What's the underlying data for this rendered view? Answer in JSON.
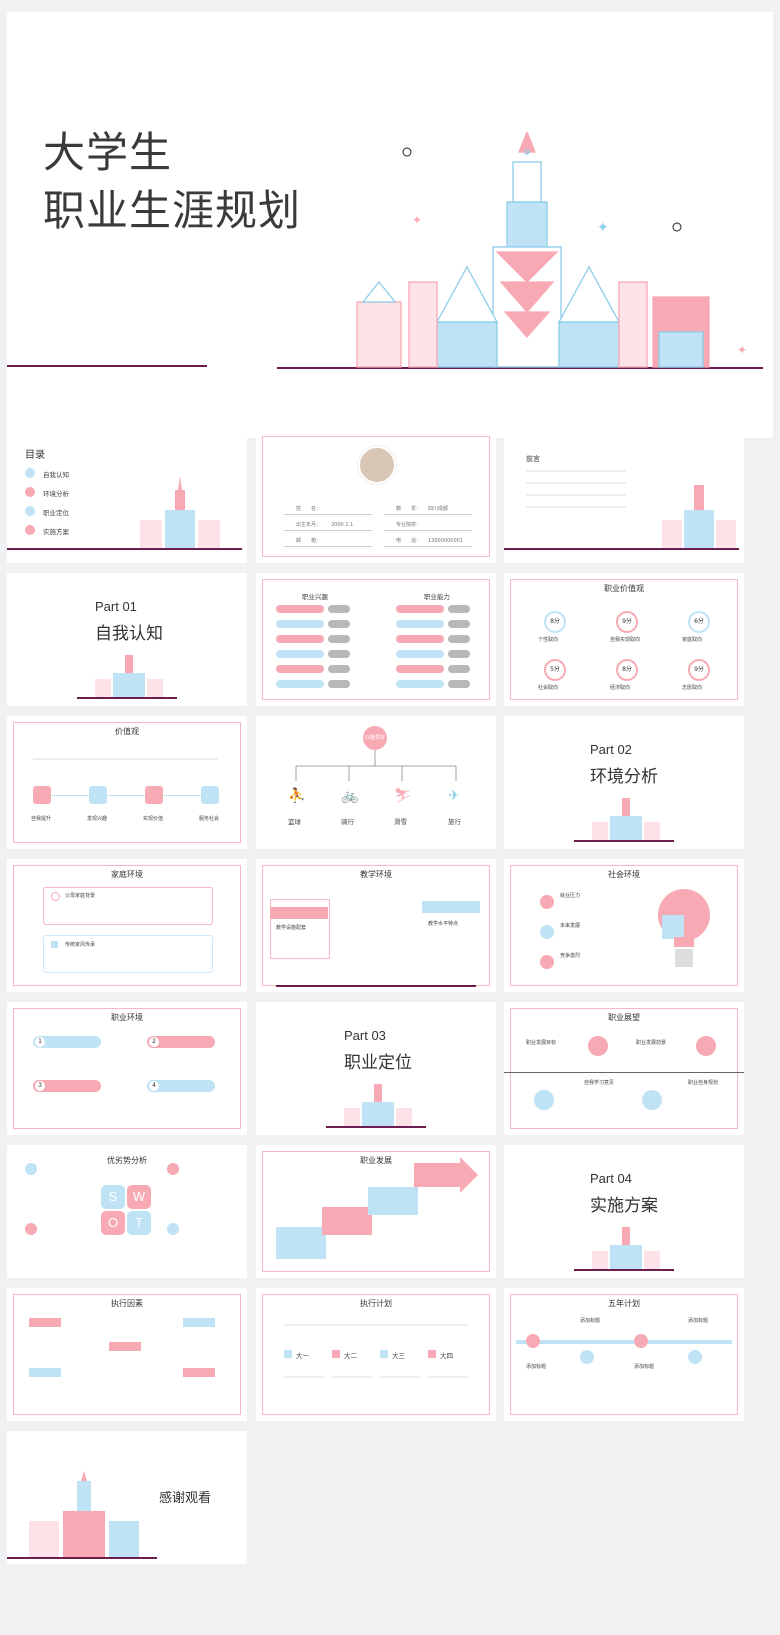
{
  "cover": {
    "line1": "大学生",
    "line2": "职业生涯规划"
  },
  "toc": {
    "title": "目录",
    "items": [
      "自我认知",
      "环境分析",
      "职业定位",
      "实施方案"
    ]
  },
  "profile": {
    "fields": [
      {
        "label": "姓　　名：",
        "value": ""
      },
      {
        "label": "籍　　贯：",
        "value": "四川成都"
      },
      {
        "label": "出生年月：",
        "value": "2000.1.1"
      },
      {
        "label": "专业院校：",
        "value": ""
      },
      {
        "label": "邮　　箱：",
        "value": ""
      },
      {
        "label": "电　　话：",
        "value": "13000000001"
      }
    ]
  },
  "preface": {
    "title": "前言"
  },
  "parts": [
    {
      "label": "Part 01",
      "name": "自我认知"
    },
    {
      "label": "Part 02",
      "name": "环境分析"
    },
    {
      "label": "Part 03",
      "name": "职业定位"
    },
    {
      "label": "Part 04",
      "name": "实施方案"
    }
  ],
  "interest": {
    "left_title": "职业兴趣",
    "right_title": "职业能力"
  },
  "values_slide": {
    "title": "职业价值观",
    "items": [
      {
        "score": "8分",
        "label": "个性取向"
      },
      {
        "score": "9分",
        "label": "自我实现取向"
      },
      {
        "score": "6分",
        "label": "家庭取向"
      },
      {
        "score": "5分",
        "label": "社会取向"
      },
      {
        "score": "8分",
        "label": "经济取向"
      },
      {
        "score": "9分",
        "label": "志愿取向"
      }
    ]
  },
  "worldview": {
    "title": "价值观",
    "items": [
      "自我提升",
      "发现兴趣",
      "实现价值",
      "服务社会"
    ]
  },
  "hobby": {
    "root": "兴趣爱好",
    "items": [
      "篮球",
      "骑行",
      "滑雪",
      "旅行"
    ]
  },
  "family": {
    "title": "家庭环境",
    "items": [
      "父母家庭背景",
      "传统家风传承"
    ]
  },
  "school": {
    "title": "教学环境",
    "left": "教学设施配套",
    "right": "教学水平特点"
  },
  "society": {
    "title": "社会环境",
    "items": [
      "就业压力",
      "未来发展",
      "竞争激烈"
    ]
  },
  "career_env": {
    "title": "职业环境",
    "nums": [
      "1",
      "2",
      "3",
      "4"
    ]
  },
  "prospect": {
    "title": "职业展望",
    "items": [
      "职业发展目标",
      "职业发展前景",
      "自我学习意见",
      "职业自身规划"
    ]
  },
  "swot": {
    "title": "优劣势分析",
    "letters": [
      "S",
      "W",
      "O",
      "T"
    ]
  },
  "develop": {
    "title": "职业发展"
  },
  "factors": {
    "title": "执行因素"
  },
  "plan": {
    "title": "执行计划",
    "years": [
      "大一",
      "大二",
      "大三",
      "大四"
    ]
  },
  "fiveyear": {
    "title": "五年计划",
    "items": [
      "添加标题",
      "添加标题",
      "添加标题",
      "添加标题"
    ]
  },
  "thanks": {
    "text": "感谢观看"
  },
  "colors": {
    "pink": "#f7a9b4",
    "blue": "#bfe3f5",
    "ground": "#6a1d4e"
  }
}
